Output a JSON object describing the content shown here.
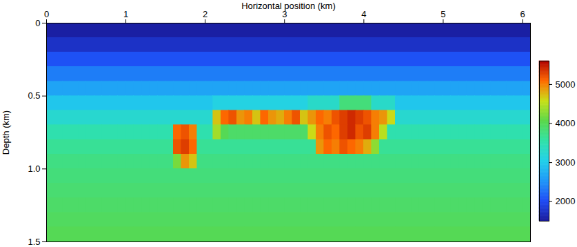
{
  "chart_data": {
    "type": "heatmap",
    "x_label": "Horizontal position (km)",
    "y_label": "Depth (km)",
    "xlim": [
      0,
      6.1
    ],
    "ylim": [
      0,
      1.5
    ],
    "xticks": [
      0,
      1,
      2,
      3,
      4,
      5,
      6
    ],
    "yticks": [
      0,
      0.5,
      {
        "value": 1,
        "label": "1.0"
      },
      1.5
    ],
    "color_range": [
      1500,
      5600
    ],
    "color_ticks": [
      2000,
      3000,
      4000,
      5000
    ],
    "x": [
      0.05,
      0.15,
      0.25,
      0.35,
      0.45,
      0.55,
      0.65,
      0.75,
      0.85,
      0.95,
      1.05,
      1.15,
      1.25,
      1.35,
      1.45,
      1.55,
      1.65,
      1.75,
      1.85,
      1.95,
      2.05,
      2.15,
      2.25,
      2.35,
      2.45,
      2.55,
      2.65,
      2.75,
      2.85,
      2.95,
      3.05,
      3.15,
      3.25,
      3.35,
      3.45,
      3.55,
      3.65,
      3.75,
      3.85,
      3.95,
      4.05,
      4.15,
      4.25,
      4.35,
      4.45,
      4.55,
      4.65,
      4.75,
      4.85,
      4.95,
      5.05,
      5.15,
      5.25,
      5.35,
      5.45,
      5.55,
      5.65,
      5.75,
      5.85,
      5.95,
      6.05
    ],
    "y": [
      0.05,
      0.15,
      0.25,
      0.35,
      0.45,
      0.55,
      0.65,
      0.75,
      0.85,
      0.95,
      1.05,
      1.15,
      1.25,
      1.35,
      1.45
    ],
    "cells": [
      [
        1550,
        1550,
        1550,
        1550,
        1550,
        1550,
        1550,
        1550,
        1550,
        1550,
        1550,
        1550,
        1550,
        1550,
        1550,
        1550,
        1550,
        1550,
        1550,
        1550,
        1550,
        1550,
        1550,
        1550,
        1550,
        1550,
        1550,
        1550,
        1550,
        1550,
        1550,
        1550,
        1550,
        1550,
        1550,
        1550,
        1550,
        1550,
        1550,
        1550,
        1550,
        1550,
        1550,
        1550,
        1550,
        1550,
        1550,
        1550,
        1550,
        1550,
        1550,
        1550,
        1550,
        1550,
        1550,
        1550,
        1550,
        1550,
        1550,
        1550,
        1550
      ],
      [
        1750,
        1750,
        1750,
        1750,
        1750,
        1750,
        1750,
        1750,
        1750,
        1750,
        1750,
        1750,
        1750,
        1750,
        1750,
        1750,
        1750,
        1750,
        1750,
        1750,
        1750,
        1750,
        1750,
        1750,
        1750,
        1750,
        1750,
        1750,
        1750,
        1750,
        1750,
        1750,
        1750,
        1750,
        1750,
        1750,
        1750,
        1750,
        1750,
        1750,
        1750,
        1750,
        1750,
        1750,
        1750,
        1750,
        1750,
        1750,
        1750,
        1750,
        1750,
        1750,
        1750,
        1750,
        1750,
        1750,
        1750,
        1750,
        1750,
        1750,
        1750
      ],
      [
        2050,
        2050,
        2050,
        2050,
        2050,
        2050,
        2050,
        2050,
        2050,
        2050,
        2050,
        2050,
        2050,
        2050,
        2050,
        2050,
        2050,
        2050,
        2050,
        2050,
        2050,
        2050,
        2050,
        2050,
        2050,
        2050,
        2050,
        2050,
        2050,
        2050,
        2050,
        2050,
        2050,
        2050,
        2050,
        2050,
        2050,
        2050,
        2050,
        2050,
        2050,
        2050,
        2050,
        2050,
        2050,
        2050,
        2050,
        2050,
        2050,
        2050,
        2050,
        2050,
        2050,
        2050,
        2050,
        2050,
        2050,
        2050,
        2050,
        2050,
        2050
      ],
      [
        2350,
        2350,
        2350,
        2350,
        2350,
        2350,
        2350,
        2350,
        2350,
        2350,
        2350,
        2350,
        2350,
        2350,
        2350,
        2350,
        2350,
        2350,
        2350,
        2350,
        2350,
        2350,
        2350,
        2350,
        2350,
        2350,
        2350,
        2350,
        2350,
        2350,
        2350,
        2350,
        2350,
        2350,
        2350,
        2350,
        2350,
        2350,
        2350,
        2350,
        2350,
        2350,
        2350,
        2350,
        2350,
        2350,
        2350,
        2350,
        2350,
        2350,
        2350,
        2350,
        2350,
        2350,
        2350,
        2350,
        2350,
        2350,
        2350,
        2350,
        2350
      ],
      [
        2650,
        2650,
        2650,
        2650,
        2650,
        2650,
        2650,
        2650,
        2650,
        2650,
        2650,
        2650,
        2650,
        2650,
        2650,
        2650,
        2650,
        2650,
        2650,
        2650,
        2650,
        2650,
        2650,
        2650,
        2650,
        2650,
        2650,
        2650,
        2650,
        2650,
        2650,
        2650,
        2650,
        2650,
        2650,
        2650,
        2650,
        2650,
        2650,
        2650,
        2650,
        2650,
        2650,
        2650,
        2650,
        2650,
        2650,
        2650,
        2650,
        2650,
        2650,
        2650,
        2650,
        2650,
        2650,
        2650,
        2650,
        2650,
        2650,
        2650,
        2650
      ],
      [
        2950,
        2950,
        2950,
        2950,
        2950,
        2950,
        2950,
        2950,
        2950,
        2950,
        2950,
        2950,
        2950,
        2950,
        2950,
        2950,
        2950,
        2950,
        2950,
        2950,
        2950,
        3100,
        3100,
        3100,
        3100,
        3100,
        3100,
        3100,
        3100,
        3100,
        3100,
        3100,
        3100,
        3300,
        3300,
        3300,
        3300,
        3800,
        3800,
        3800,
        3800,
        3300,
        3300,
        3300,
        2950,
        2950,
        2950,
        2950,
        2950,
        2950,
        2950,
        2950,
        2950,
        2950,
        2950,
        2950,
        2950,
        2950,
        2950,
        2950,
        2950
      ],
      [
        3250,
        3250,
        3250,
        3250,
        3250,
        3250,
        3250,
        3250,
        3250,
        3250,
        3250,
        3250,
        3250,
        3250,
        3250,
        3250,
        3250,
        3250,
        3250,
        3250,
        3250,
        4700,
        5100,
        5200,
        4900,
        5000,
        4700,
        5100,
        4900,
        4800,
        5000,
        5200,
        4700,
        4900,
        5100,
        5000,
        5200,
        5300,
        5400,
        5300,
        5200,
        5000,
        4900,
        4600,
        3250,
        3250,
        3250,
        3250,
        3250,
        3250,
        3250,
        3250,
        3250,
        3250,
        3250,
        3250,
        3250,
        3250,
        3250,
        3250,
        3250
      ],
      [
        3500,
        3500,
        3500,
        3500,
        3500,
        3500,
        3500,
        3500,
        3500,
        3500,
        3500,
        3500,
        3500,
        3500,
        3500,
        3500,
        5100,
        5200,
        5000,
        3500,
        3500,
        4400,
        4000,
        3900,
        3900,
        3900,
        3900,
        3900,
        3900,
        3900,
        3900,
        3900,
        3900,
        4600,
        5000,
        5200,
        5100,
        5300,
        5400,
        5200,
        5300,
        5000,
        4500,
        3500,
        3500,
        3500,
        3500,
        3500,
        3500,
        3500,
        3500,
        3500,
        3500,
        3500,
        3500,
        3500,
        3500,
        3500,
        3500,
        3500,
        3500
      ],
      [
        3650,
        3650,
        3650,
        3650,
        3650,
        3650,
        3650,
        3650,
        3650,
        3650,
        3650,
        3650,
        3650,
        3650,
        3650,
        3650,
        5200,
        5300,
        5100,
        3650,
        3650,
        3650,
        3650,
        3650,
        3650,
        3650,
        3650,
        3650,
        3650,
        3650,
        3650,
        3650,
        3650,
        3650,
        4900,
        5100,
        5000,
        5200,
        5100,
        5000,
        4800,
        4300,
        3650,
        3650,
        3650,
        3650,
        3650,
        3650,
        3650,
        3650,
        3650,
        3650,
        3650,
        3650,
        3650,
        3650,
        3650,
        3650,
        3650,
        3650,
        3650
      ],
      [
        3750,
        3750,
        3750,
        3750,
        3750,
        3750,
        3750,
        3750,
        3750,
        3750,
        3750,
        3750,
        3750,
        3750,
        3750,
        3750,
        4200,
        4900,
        4700,
        3750,
        3750,
        3750,
        3750,
        3750,
        3750,
        3750,
        3750,
        3750,
        3750,
        3750,
        3750,
        3750,
        3750,
        3750,
        3750,
        3750,
        3750,
        3750,
        3750,
        3750,
        3750,
        3750,
        3750,
        3750,
        3750,
        3750,
        3750,
        3750,
        3750,
        3750,
        3750,
        3750,
        3750,
        3750,
        3750,
        3750,
        3750,
        3750,
        3750,
        3750,
        3750
      ],
      [
        3800,
        3800,
        3800,
        3800,
        3800,
        3800,
        3800,
        3800,
        3800,
        3800,
        3800,
        3800,
        3800,
        3800,
        3800,
        3800,
        3800,
        3800,
        3800,
        3800,
        3800,
        3800,
        3800,
        3800,
        3800,
        3800,
        3800,
        3800,
        3800,
        3800,
        3800,
        3800,
        3800,
        3800,
        3800,
        3800,
        3800,
        3800,
        3800,
        3800,
        3800,
        3800,
        3800,
        3800,
        3800,
        3800,
        3800,
        3800,
        3800,
        3800,
        3800,
        3800,
        3800,
        3800,
        3800,
        3800,
        3800,
        3800,
        3800,
        3800,
        3800
      ],
      [
        3850,
        3850,
        3850,
        3850,
        3850,
        3850,
        3850,
        3850,
        3850,
        3850,
        3850,
        3850,
        3850,
        3850,
        3850,
        3850,
        3850,
        3850,
        3850,
        3850,
        3850,
        3850,
        3850,
        3850,
        3850,
        3850,
        3850,
        3850,
        3850,
        3850,
        3850,
        3850,
        3850,
        3850,
        3850,
        3850,
        3850,
        3850,
        3850,
        3850,
        3850,
        3850,
        3850,
        3850,
        3850,
        3850,
        3850,
        3850,
        3850,
        3850,
        3850,
        3850,
        3850,
        3850,
        3850,
        3850,
        3850,
        3850,
        3850,
        3850,
        3850
      ],
      [
        3900,
        3900,
        3900,
        3900,
        3900,
        3900,
        3900,
        3900,
        3900,
        3900,
        3900,
        3900,
        3900,
        3900,
        3900,
        3900,
        3900,
        3900,
        3900,
        3900,
        3900,
        3900,
        3900,
        3900,
        3900,
        3900,
        3900,
        3900,
        3900,
        3900,
        3900,
        3900,
        3900,
        3900,
        3900,
        3900,
        3900,
        3900,
        3900,
        3900,
        3900,
        3900,
        3900,
        3900,
        3900,
        3900,
        3900,
        3900,
        3900,
        3900,
        3900,
        3900,
        3900,
        3900,
        3900,
        3900,
        3900,
        3900,
        3900,
        3900,
        3900
      ],
      [
        3950,
        3950,
        3950,
        3950,
        3950,
        3950,
        3950,
        3950,
        3950,
        3950,
        3950,
        3950,
        3950,
        3950,
        3950,
        3950,
        3950,
        3950,
        3950,
        3950,
        3950,
        3950,
        3950,
        3950,
        3950,
        3950,
        3950,
        3950,
        3950,
        3950,
        3950,
        3950,
        3950,
        3950,
        3950,
        3950,
        3950,
        3950,
        3950,
        3950,
        3950,
        3950,
        3950,
        3950,
        3950,
        3950,
        3950,
        3950,
        3950,
        3950,
        3950,
        3950,
        3950,
        3950,
        3950,
        3950,
        3950,
        3950,
        3950,
        3950,
        3950
      ],
      [
        4000,
        4000,
        4000,
        4000,
        4000,
        4000,
        4000,
        4000,
        4000,
        4000,
        4000,
        4000,
        4000,
        4000,
        4000,
        4000,
        4000,
        4000,
        4000,
        4000,
        4000,
        4000,
        4000,
        4000,
        4000,
        4000,
        4000,
        4000,
        4000,
        4000,
        4000,
        4000,
        4000,
        4000,
        4000,
        4000,
        4000,
        4000,
        4000,
        4000,
        4000,
        4000,
        4000,
        4000,
        4000,
        4000,
        4000,
        4000,
        4000,
        4000,
        4000,
        4000,
        4000,
        4000,
        4000,
        4000,
        4000,
        4000,
        4000,
        4000,
        4000
      ]
    ]
  }
}
